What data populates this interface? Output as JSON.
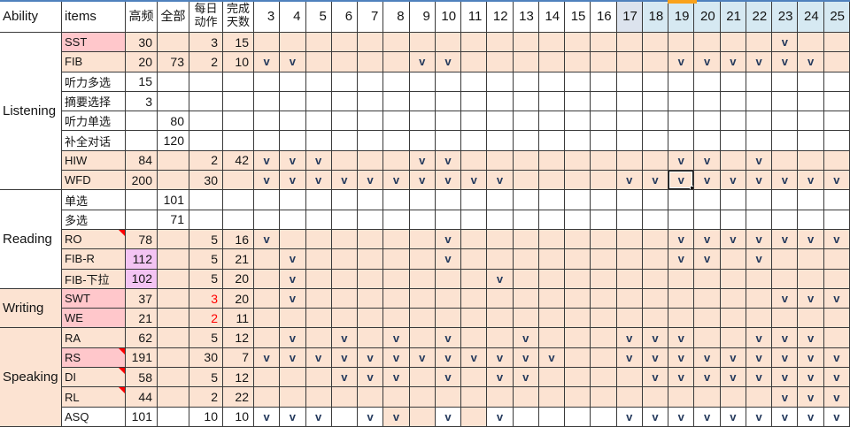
{
  "colors": {
    "peach": "#fce3d2",
    "pink": "#ffc7cb",
    "purple": "#f3c4f3",
    "white": "#ffffff",
    "day_header_blue": "#d6e9f2",
    "day_header_17": "#dce3ee",
    "grid_line": "#3a3a3a",
    "check": "#24395c",
    "red_value": "#ff0000",
    "comment_triangle": "#ff0000",
    "top_line": "#4f81bd",
    "column_marker": "#f9a21b",
    "selection": "#1a1a1a"
  },
  "header": {
    "ability": "Ability",
    "items": "items",
    "high_freq": "高频",
    "total": "全部",
    "daily_action": "每日\n动作",
    "days_done": "完成\n天数",
    "days": [
      3,
      4,
      5,
      6,
      7,
      8,
      9,
      10,
      11,
      12,
      13,
      14,
      15,
      16,
      17,
      18,
      19,
      20,
      21,
      22,
      23,
      24,
      25
    ]
  },
  "selected_cell": {
    "item": "WFD",
    "day": 19
  },
  "groups": [
    {
      "ability": "Listening",
      "ability_bg": "white",
      "rows": [
        {
          "item": "SST",
          "item_bg": "pink",
          "row_bg": "peach",
          "high_freq": "30",
          "total": "",
          "daily": "3",
          "days_done": "15",
          "checks": [
            23
          ]
        },
        {
          "item": "FIB",
          "item_bg": "peach",
          "row_bg": "peach",
          "high_freq": "20",
          "total": "73",
          "daily": "2",
          "days_done": "10",
          "checks": [
            3,
            4,
            9,
            10,
            19,
            20,
            21,
            22,
            23,
            24
          ]
        },
        {
          "item": "听力多选",
          "item_bg": "white",
          "row_bg": "white",
          "high_freq": "15",
          "total": "",
          "daily": "",
          "days_done": "",
          "checks": []
        },
        {
          "item": "摘要选择",
          "item_bg": "white",
          "row_bg": "white",
          "high_freq": "3",
          "total": "",
          "daily": "",
          "days_done": "",
          "checks": []
        },
        {
          "item": "听力单选",
          "item_bg": "white",
          "row_bg": "white",
          "high_freq": "",
          "total": "80",
          "daily": "",
          "days_done": "",
          "checks": []
        },
        {
          "item": "补全对话",
          "item_bg": "white",
          "row_bg": "white",
          "high_freq": "",
          "total": "120",
          "daily": "",
          "days_done": "",
          "checks": []
        },
        {
          "item": "HIW",
          "item_bg": "peach",
          "row_bg": "peach",
          "high_freq": "84",
          "total": "",
          "daily": "2",
          "days_done": "42",
          "checks": [
            3,
            4,
            5,
            9,
            10,
            19,
            20,
            22
          ]
        },
        {
          "item": "WFD",
          "item_bg": "peach",
          "row_bg": "peach",
          "high_freq": "200",
          "total": "",
          "daily": "30",
          "days_done": "",
          "checks": [
            3,
            4,
            5,
            6,
            7,
            8,
            9,
            10,
            11,
            12,
            17,
            18,
            19,
            20,
            21,
            22,
            23,
            24,
            25
          ]
        }
      ]
    },
    {
      "ability": "Reading",
      "ability_bg": "white",
      "rows": [
        {
          "item": "单选",
          "item_bg": "white",
          "row_bg": "white",
          "high_freq": "",
          "total": "101",
          "daily": "",
          "days_done": "",
          "checks": []
        },
        {
          "item": "多选",
          "item_bg": "white",
          "row_bg": "white",
          "high_freq": "",
          "total": "71",
          "daily": "",
          "days_done": "",
          "checks": []
        },
        {
          "item": "RO",
          "item_bg": "peach",
          "row_bg": "peach",
          "comment": true,
          "high_freq": "78",
          "total": "",
          "daily": "5",
          "days_done": "16",
          "checks": [
            3,
            10,
            19,
            20,
            21,
            22,
            23,
            24,
            25
          ]
        },
        {
          "item": "FIB-R",
          "item_bg": "peach",
          "row_bg": "peach",
          "high_freq": "112",
          "high_freq_bg": "purple",
          "total": "",
          "daily": "5",
          "days_done": "21",
          "checks": [
            4,
            10,
            19,
            20,
            22
          ]
        },
        {
          "item": "FIB-下拉",
          "item_bg": "peach",
          "row_bg": "peach",
          "high_freq": "102",
          "high_freq_bg": "purple",
          "total": "",
          "daily": "5",
          "days_done": "20",
          "checks": [
            4,
            12
          ]
        }
      ]
    },
    {
      "ability": "Writing",
      "ability_bg": "peach",
      "rows": [
        {
          "item": "SWT",
          "item_bg": "pink",
          "row_bg": "peach",
          "high_freq": "37",
          "total": "",
          "daily": "3",
          "daily_red": true,
          "days_done": "20",
          "checks": [
            4,
            23,
            24,
            25
          ]
        },
        {
          "item": "WE",
          "item_bg": "pink",
          "row_bg": "peach",
          "high_freq": "21",
          "total": "",
          "daily": "2",
          "daily_red": true,
          "days_done": "11",
          "checks": []
        }
      ]
    },
    {
      "ability": "Speaking",
      "ability_bg": "peach",
      "rows": [
        {
          "item": "RA",
          "item_bg": "peach",
          "row_bg": "peach",
          "high_freq": "62",
          "total": "",
          "daily": "5",
          "days_done": "12",
          "checks": [
            4,
            6,
            8,
            10,
            13,
            17,
            18,
            19,
            22,
            23,
            24
          ]
        },
        {
          "item": "RS",
          "item_bg": "pink",
          "row_bg": "peach",
          "comment": true,
          "high_freq": "191",
          "total": "",
          "daily": "30",
          "days_done": "7",
          "checks": [
            3,
            4,
            5,
            6,
            7,
            8,
            9,
            10,
            11,
            12,
            13,
            14,
            17,
            18,
            19,
            20,
            21,
            22,
            23,
            24,
            25
          ]
        },
        {
          "item": "DI",
          "item_bg": "peach",
          "row_bg": "peach",
          "comment": true,
          "high_freq": "58",
          "total": "",
          "daily": "5",
          "days_done": "12",
          "checks": [
            6,
            7,
            8,
            10,
            12,
            13,
            18,
            19,
            20,
            21,
            22,
            23,
            24,
            25
          ]
        },
        {
          "item": "RL",
          "item_bg": "peach",
          "row_bg": "peach",
          "comment": true,
          "high_freq": "44",
          "total": "",
          "daily": "2",
          "days_done": "22",
          "checks": [
            23,
            24,
            25
          ]
        },
        {
          "item": "ASQ",
          "item_bg": "white",
          "row_bg": "white",
          "high_freq": "101",
          "total": "",
          "daily": "10",
          "days_done": "10",
          "peach_days": [
            8,
            9,
            11
          ],
          "checks": [
            3,
            4,
            5,
            7,
            8,
            10,
            12,
            17,
            18,
            19,
            20,
            21,
            22,
            23,
            24,
            25
          ]
        }
      ]
    }
  ]
}
